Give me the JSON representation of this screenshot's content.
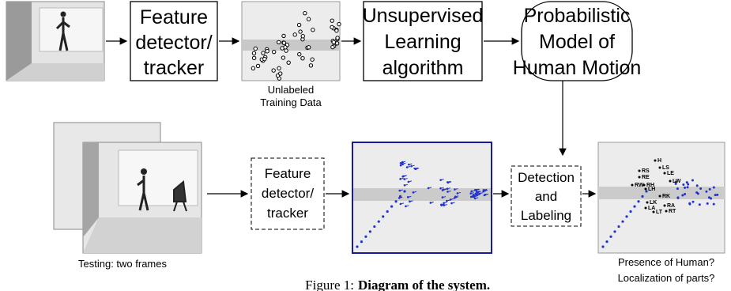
{
  "top_row": {
    "detector_box": {
      "lines": [
        "Feature",
        "detector/",
        "tracker"
      ]
    },
    "training_data_caption": {
      "lines": [
        "Unlabeled",
        "Training Data"
      ]
    },
    "learning_box": {
      "lines": [
        "Unsupervised",
        "Learning",
        "algorithm"
      ]
    },
    "model_box": {
      "lines": [
        "Probabilistic",
        "Model of",
        "Human Motion"
      ]
    }
  },
  "bottom_row": {
    "testing_caption": "Testing: two frames",
    "detector_box": {
      "lines": [
        "Feature",
        "detector/",
        "tracker"
      ]
    },
    "detection_box": {
      "lines": [
        "Detection",
        "and",
        "Labeling"
      ]
    },
    "part_labels": [
      "H",
      "LS",
      "RS",
      "LE",
      "RE",
      "LW",
      "RW",
      "RH",
      "LH",
      "RK",
      "LK",
      "LA",
      "RA",
      "LT",
      "RT"
    ],
    "output_caption": {
      "lines": [
        "Presence of Human?",
        "Localization of parts?"
      ]
    }
  },
  "caption": {
    "label": "Figure 1:",
    "text": "Diagram of the system."
  }
}
